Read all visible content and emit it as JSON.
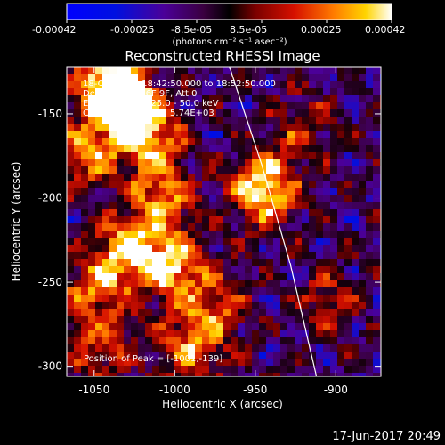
{
  "colorbar": {
    "tick_labels": [
      "-0.00042",
      "-0.00025",
      "-8.5e-05",
      "8.5e-05",
      "0.00025",
      "0.00042"
    ],
    "unit_label": "(photons cm⁻² s⁻¹ asec⁻²)",
    "range": [
      -0.00042,
      0.00042
    ]
  },
  "chart_data": {
    "type": "heatmap",
    "title": "Reconstructed RHESSI Image",
    "xlabel": "Heliocentric X (arcsec)",
    "ylabel": "Heliocentric Y (arcsec)",
    "xlim": [
      -1067,
      -872
    ],
    "ylim": [
      -306,
      -122
    ],
    "xticks": [
      -1050,
      -1000,
      -950,
      -900
    ],
    "yticks": [
      -150,
      -200,
      -250,
      -300
    ],
    "annotations": [
      "18-Oct-2014 18:42:50.000 to 18:52:50.000",
      "Detectors: 3F 6F 9F, Att 0",
      "Energy Range: 25.0 - 50.0 keV",
      "Clean   Total counts: 5.74E+03"
    ],
    "peak_label": "Position of Peak = [-1001,-139]",
    "peak": [
      -1001,
      -139
    ],
    "limb": [
      [
        -966,
        -122
      ],
      [
        -946,
        -180
      ],
      [
        -928,
        -240
      ],
      [
        -912,
        -306
      ]
    ],
    "bright_sources": [
      {
        "x": -1031,
        "y": -145,
        "v": 1.0
      },
      {
        "x": -1042,
        "y": -132,
        "v": 0.8
      },
      {
        "x": -1015,
        "y": -165,
        "v": 0.7
      },
      {
        "x": -1055,
        "y": -175,
        "v": 0.55
      },
      {
        "x": -1008,
        "y": -200,
        "v": 0.6
      },
      {
        "x": -1030,
        "y": -230,
        "v": 0.75
      },
      {
        "x": -1002,
        "y": -240,
        "v": 0.8
      },
      {
        "x": -1050,
        "y": -255,
        "v": 0.55
      },
      {
        "x": -975,
        "y": -265,
        "v": 0.5
      },
      {
        "x": -990,
        "y": -290,
        "v": 0.55
      },
      {
        "x": -1045,
        "y": -290,
        "v": 0.45
      },
      {
        "x": -945,
        "y": -195,
        "v": 0.95
      },
      {
        "x": -920,
        "y": -160,
        "v": 0.35
      },
      {
        "x": -905,
        "y": -260,
        "v": 0.35
      }
    ]
  },
  "footer": {
    "timestamp": "17-Jun-2017 20:49"
  }
}
